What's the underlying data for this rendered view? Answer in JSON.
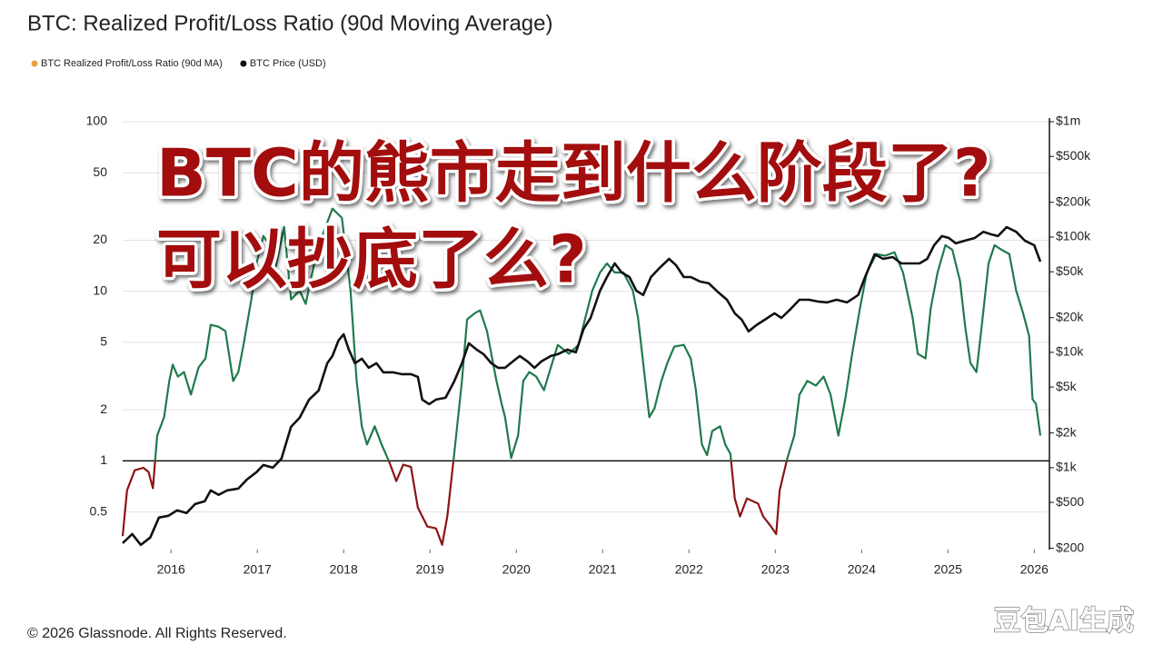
{
  "chart_data": {
    "type": "line",
    "title": "BTC: Realized Profit/Loss Ratio (90d Moving Average)",
    "log_scale": true,
    "grid": true,
    "legend_position": "top-left",
    "reference_line": 1,
    "xlim": [
      2015.44,
      2026.07
    ],
    "xticks": [
      2016,
      2017,
      2018,
      2019,
      2020,
      2021,
      2022,
      2023,
      2024,
      2025,
      2026
    ],
    "ylim": [
      0.3,
      100
    ],
    "yticks": [
      100,
      50,
      20,
      10,
      5,
      2,
      1,
      0.5
    ],
    "y2lim": [
      195,
      1000000
    ],
    "y2ticks": [
      {
        "value": 1000000,
        "label": "$1m"
      },
      {
        "value": 500000,
        "label": "$500k"
      },
      {
        "value": 200000,
        "label": "$200k"
      },
      {
        "value": 100000,
        "label": "$100k"
      },
      {
        "value": 50000,
        "label": "$50k"
      },
      {
        "value": 20000,
        "label": "$20k"
      },
      {
        "value": 10000,
        "label": "$10k"
      },
      {
        "value": 5000,
        "label": "$5k"
      },
      {
        "value": 2000,
        "label": "$2k"
      },
      {
        "value": 1000,
        "label": "$1k"
      },
      {
        "value": 500,
        "label": "$500"
      },
      {
        "value": 200,
        "label": "$200"
      }
    ],
    "series": [
      {
        "name": "BTC Realized Profit/Loss Ratio (90d MA)",
        "color": "#1f7a4c",
        "below_color": "#8b1414",
        "legend_color": "#e8a13a",
        "x": [
          2015.44,
          2015.49,
          2015.58,
          2015.68,
          2015.74,
          2015.79,
          2015.84,
          2015.92,
          2015.98,
          2016.02,
          2016.08,
          2016.15,
          2016.23,
          2016.32,
          2016.4,
          2016.46,
          2016.55,
          2016.63,
          2016.72,
          2016.78,
          2016.84,
          2016.93,
          2016.99,
          2017.07,
          2017.14,
          2017.2,
          2017.31,
          2017.39,
          2017.49,
          2017.56,
          2017.66,
          2017.77,
          2017.87,
          2017.98,
          2018.08,
          2018.15,
          2018.21,
          2018.27,
          2018.36,
          2018.44,
          2018.53,
          2018.61,
          2018.69,
          2018.78,
          2018.86,
          2018.97,
          2019.07,
          2019.14,
          2019.2,
          2019.28,
          2019.37,
          2019.43,
          2019.52,
          2019.58,
          2019.66,
          2019.77,
          2019.83,
          2019.87,
          2019.94,
          2020.02,
          2020.08,
          2020.15,
          2020.23,
          2020.32,
          2020.4,
          2020.48,
          2020.61,
          2020.72,
          2020.8,
          2020.88,
          2020.97,
          2021.05,
          2021.14,
          2021.24,
          2021.35,
          2021.41,
          2021.47,
          2021.54,
          2021.6,
          2021.68,
          2021.75,
          2021.83,
          2021.94,
          2022.02,
          2022.08,
          2022.15,
          2022.21,
          2022.27,
          2022.36,
          2022.42,
          2022.48,
          2022.53,
          2022.59,
          2022.67,
          2022.8,
          2022.86,
          2022.95,
          2023.01,
          2023.05,
          2023.14,
          2023.22,
          2023.28,
          2023.37,
          2023.47,
          2023.56,
          2023.64,
          2023.73,
          2023.81,
          2023.89,
          2023.98,
          2024.06,
          2024.17,
          2024.27,
          2024.38,
          2024.48,
          2024.59,
          2024.65,
          2024.74,
          2024.8,
          2024.88,
          2024.97,
          2025.05,
          2025.14,
          2025.2,
          2025.26,
          2025.33,
          2025.39,
          2025.47,
          2025.54,
          2025.62,
          2025.71,
          2025.79,
          2025.87,
          2025.94,
          2025.98,
          2026.02,
          2026.07
        ],
        "values": [
          0.36,
          0.67,
          0.88,
          0.91,
          0.86,
          0.69,
          1.41,
          1.81,
          2.96,
          3.69,
          3.14,
          3.34,
          2.46,
          3.56,
          4.02,
          6.34,
          6.18,
          5.82,
          2.96,
          3.34,
          4.83,
          8.95,
          14.6,
          21.2,
          18.7,
          12.9,
          24.0,
          8.95,
          10.1,
          8.42,
          14.6,
          22.5,
          30.7,
          27.1,
          10.1,
          2.96,
          1.6,
          1.25,
          1.6,
          1.25,
          0.98,
          0.76,
          0.95,
          0.92,
          0.53,
          0.41,
          0.4,
          0.32,
          0.47,
          1.1,
          2.96,
          6.83,
          7.44,
          7.72,
          5.82,
          2.96,
          2.17,
          1.81,
          1.04,
          1.41,
          2.96,
          3.34,
          3.14,
          2.61,
          3.56,
          4.83,
          4.28,
          4.83,
          7.0,
          10.1,
          12.9,
          14.6,
          12.9,
          12.9,
          10.1,
          7.0,
          3.78,
          1.81,
          2.04,
          2.96,
          3.78,
          4.72,
          4.83,
          4.02,
          2.61,
          1.25,
          1.08,
          1.5,
          1.6,
          1.25,
          1.1,
          0.6,
          0.47,
          0.6,
          0.56,
          0.47,
          0.41,
          0.37,
          0.67,
          1.04,
          1.41,
          2.46,
          2.96,
          2.78,
          3.14,
          2.46,
          1.41,
          2.31,
          4.28,
          7.91,
          12.9,
          16.6,
          16.2,
          17.0,
          12.9,
          7.0,
          4.28,
          4.02,
          7.91,
          12.9,
          18.7,
          17.6,
          11.5,
          6.18,
          3.78,
          3.34,
          6.18,
          14.6,
          18.7,
          17.6,
          16.6,
          10.1,
          7.44,
          5.47,
          2.31,
          2.17,
          1.41
        ]
      },
      {
        "name": "BTC Price (USD)",
        "color": "#111111",
        "axis": "y2",
        "x": [
          2015.44,
          2015.55,
          2015.65,
          2015.76,
          2015.86,
          2015.97,
          2016.07,
          2016.18,
          2016.28,
          2016.39,
          2016.46,
          2016.55,
          2016.65,
          2016.78,
          2016.88,
          2016.99,
          2017.07,
          2017.18,
          2017.28,
          2017.39,
          2017.49,
          2017.6,
          2017.71,
          2017.81,
          2017.87,
          2017.94,
          2018.0,
          2018.06,
          2018.13,
          2018.21,
          2018.29,
          2018.38,
          2018.46,
          2018.57,
          2018.67,
          2018.78,
          2018.86,
          2018.91,
          2018.99,
          2019.07,
          2019.18,
          2019.28,
          2019.37,
          2019.45,
          2019.54,
          2019.62,
          2019.71,
          2019.79,
          2019.87,
          2019.96,
          2020.04,
          2020.13,
          2020.21,
          2020.29,
          2020.4,
          2020.48,
          2020.59,
          2020.69,
          2020.78,
          2020.86,
          2020.97,
          2021.05,
          2021.14,
          2021.22,
          2021.31,
          2021.39,
          2021.47,
          2021.56,
          2021.66,
          2021.77,
          2021.85,
          2021.94,
          2022.02,
          2022.13,
          2022.23,
          2022.34,
          2022.44,
          2022.53,
          2022.61,
          2022.69,
          2022.78,
          2022.88,
          2022.99,
          2023.07,
          2023.18,
          2023.28,
          2023.39,
          2023.49,
          2023.6,
          2023.71,
          2023.83,
          2023.96,
          2024.04,
          2024.15,
          2024.25,
          2024.36,
          2024.46,
          2024.57,
          2024.67,
          2024.76,
          2024.84,
          2024.93,
          2025.01,
          2025.09,
          2025.2,
          2025.31,
          2025.41,
          2025.49,
          2025.58,
          2025.68,
          2025.79,
          2025.89,
          2026.0,
          2026.07
        ],
        "values": [
          222,
          266,
          214,
          248,
          369,
          383,
          426,
          404,
          484,
          511,
          635,
          581,
          635,
          659,
          790,
          914,
          1056,
          1000,
          1199,
          2262,
          2711,
          3896,
          4670,
          8050,
          9310,
          12660,
          14360,
          10560,
          8050,
          8810,
          7350,
          8050,
          6710,
          6710,
          6470,
          6470,
          6130,
          3896,
          3560,
          3896,
          4040,
          5600,
          8050,
          12000,
          10560,
          9640,
          8050,
          7350,
          7350,
          8340,
          9310,
          8340,
          7350,
          8340,
          9310,
          9640,
          10560,
          10000,
          16000,
          19900,
          34300,
          45000,
          59100,
          49300,
          45000,
          34300,
          31400,
          45000,
          54000,
          64700,
          57000,
          45000,
          45000,
          41100,
          39700,
          33100,
          28600,
          21800,
          19200,
          15200,
          17200,
          19200,
          21800,
          19900,
          23900,
          28600,
          28600,
          27600,
          27100,
          28600,
          27100,
          31400,
          45000,
          70800,
          64700,
          67100,
          59100,
          59100,
          59100,
          64700,
          84900,
          102000,
          98200,
          88100,
          93100,
          98200,
          111000,
          106000,
          102000,
          122000,
          111000,
          93100,
          84900,
          61200
        ]
      }
    ]
  },
  "overlay": {
    "lines": [
      "BTC的熊市走到什么阶段了?",
      "可以抄底了么?"
    ]
  },
  "footer": "© 2026 Glassnode. All Rights Reserved.",
  "watermark": "豆包AI生成"
}
